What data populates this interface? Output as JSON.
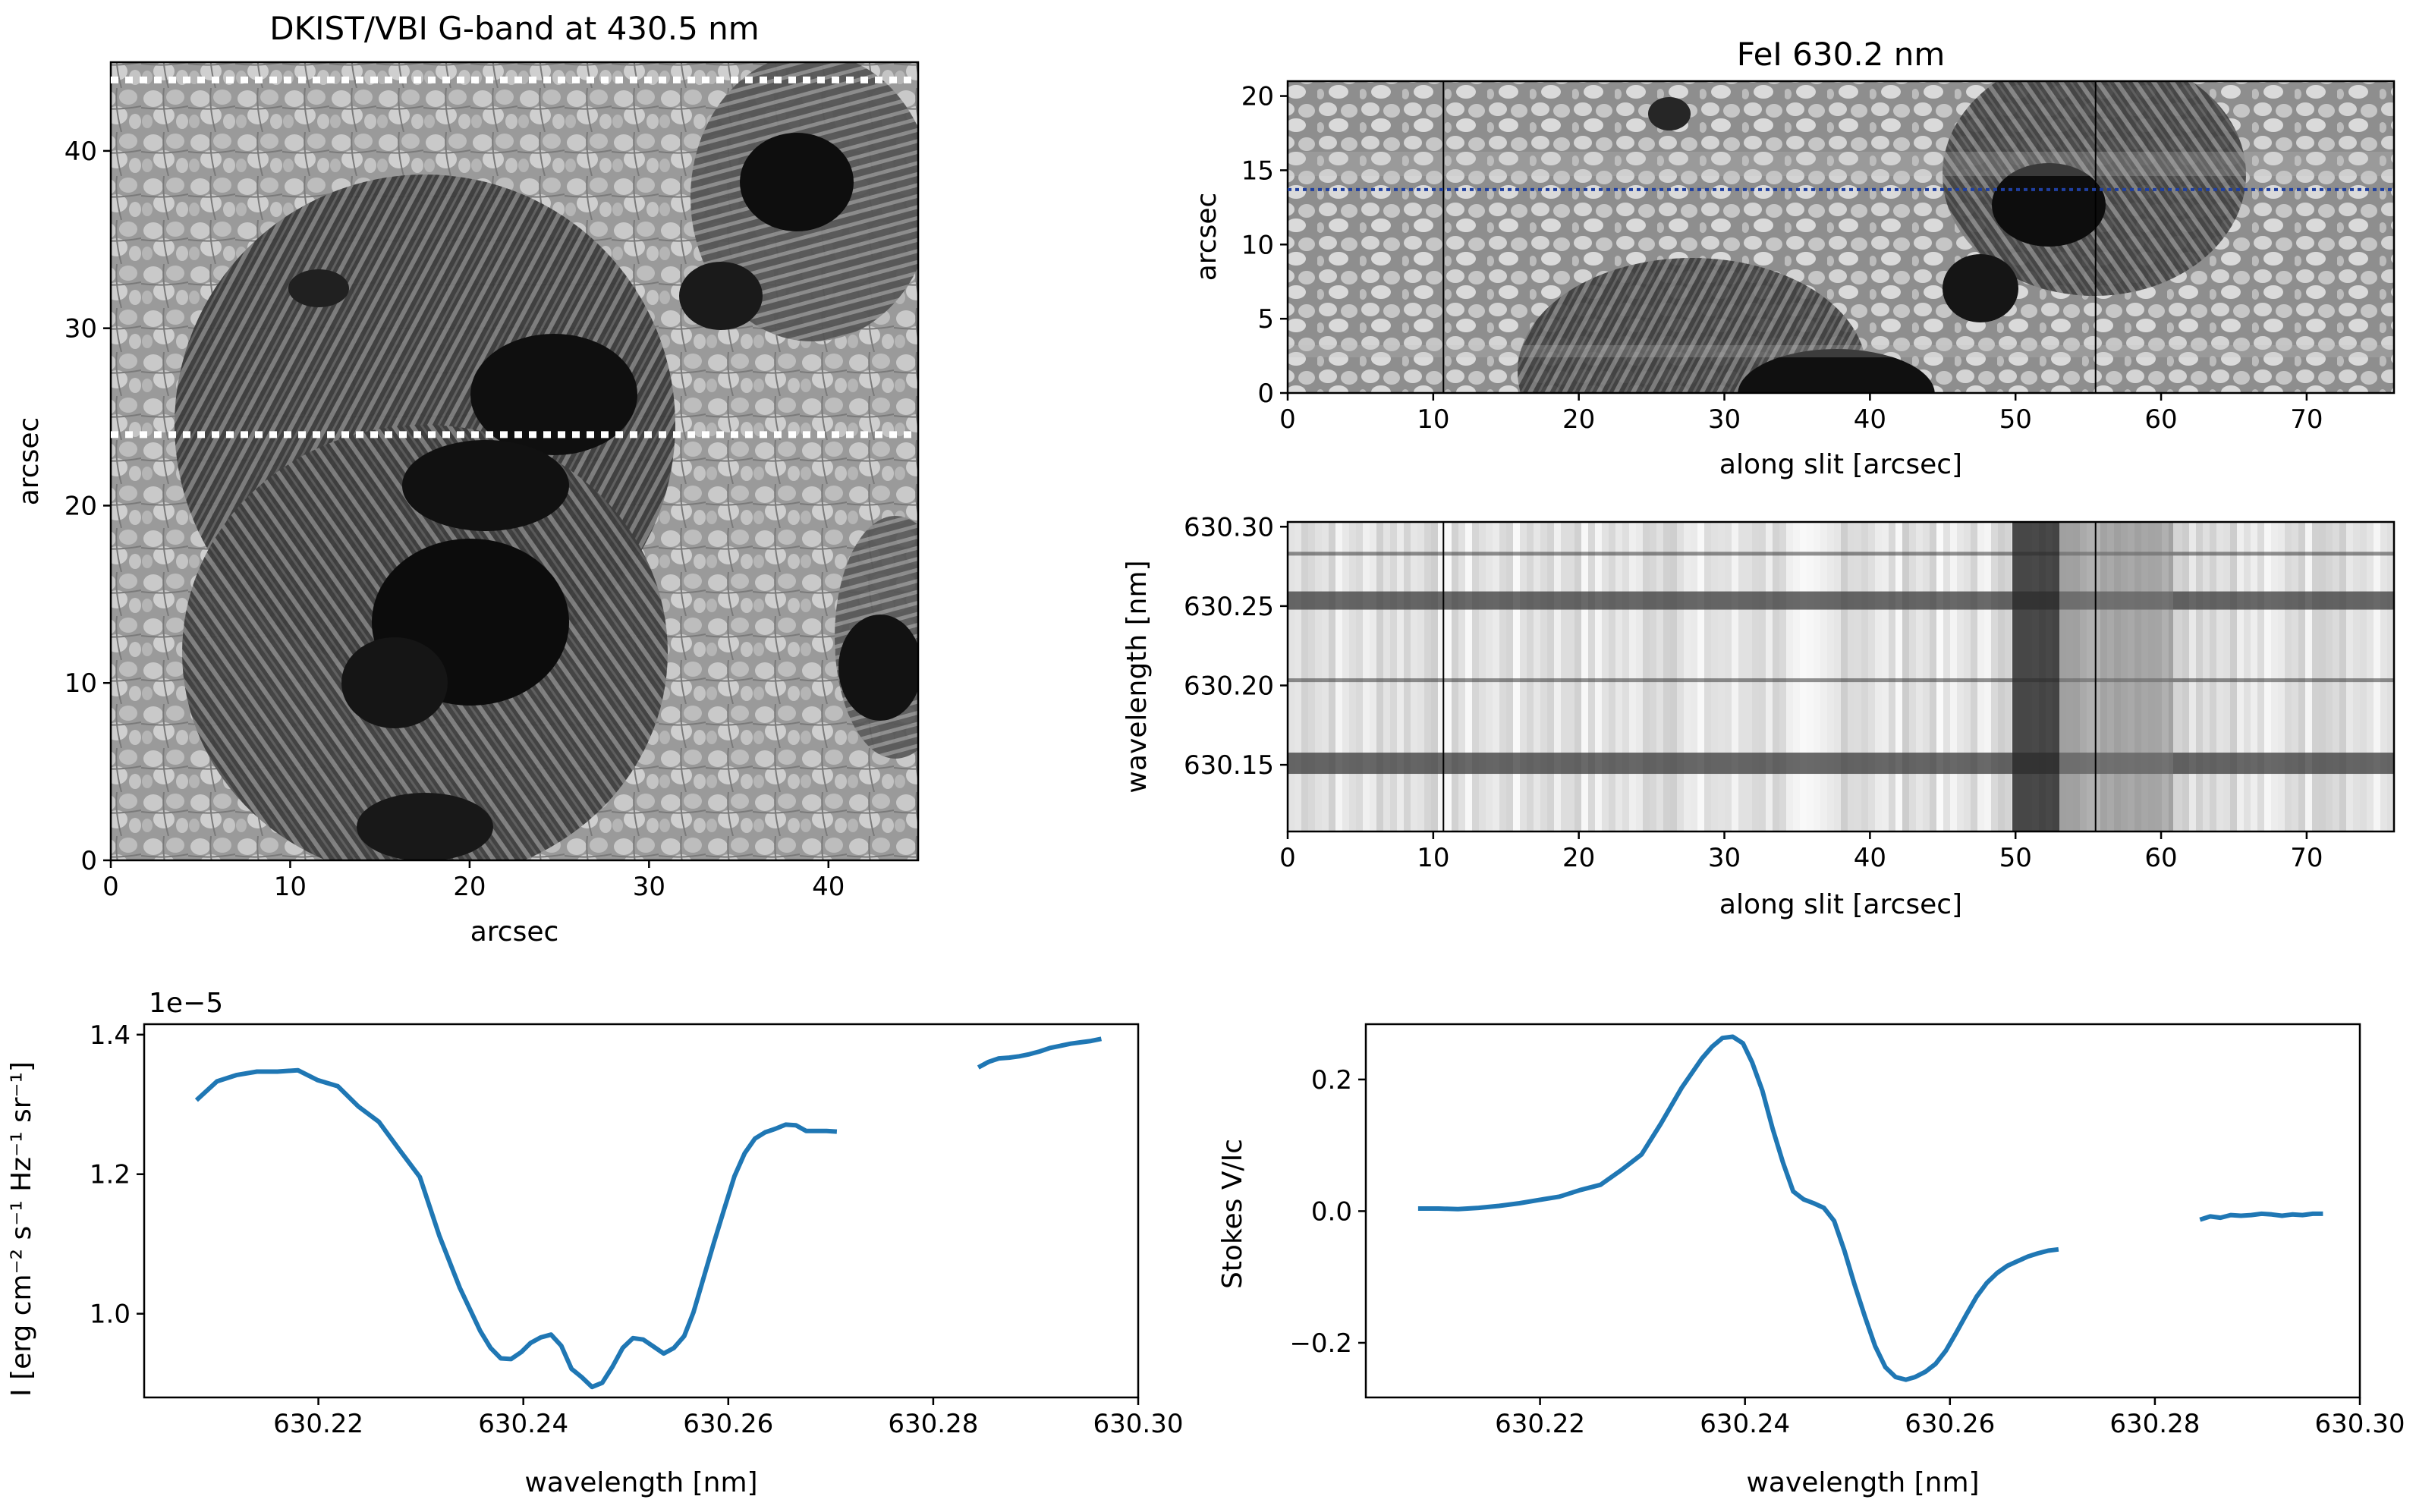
{
  "chart_data": [
    {
      "type": "heatmap",
      "title": "DKIST/VBI G-band at 430.5 nm",
      "xlabel": "arcsec",
      "ylabel": "arcsec",
      "xlim": [
        0,
        45
      ],
      "ylim": [
        0,
        45
      ],
      "xticks": [
        "0",
        "10",
        "20",
        "30",
        "40"
      ],
      "yticks": [
        "0",
        "10",
        "20",
        "30",
        "40"
      ],
      "colormap": "gray",
      "annotations": [
        {
          "kind": "dotted-horizontal-line",
          "y": 44,
          "color": "#ffffff"
        },
        {
          "kind": "dotted-horizontal-line",
          "y": 24,
          "color": "#ffffff"
        }
      ]
    },
    {
      "type": "heatmap",
      "title": "FeI 630.2 nm",
      "xlabel": "along slit [arcsec]",
      "ylabel": "arcsec",
      "xlim": [
        0,
        76
      ],
      "ylim": [
        0,
        21
      ],
      "xticks": [
        "0",
        "10",
        "20",
        "30",
        "40",
        "50",
        "60",
        "70"
      ],
      "yticks": [
        "0",
        "5",
        "10",
        "15",
        "20"
      ],
      "colormap": "gray",
      "annotations": [
        {
          "kind": "vertical-line",
          "x": 10.7,
          "color": "#000000"
        },
        {
          "kind": "vertical-line",
          "x": 55.5,
          "color": "#000000"
        },
        {
          "kind": "dotted-horizontal-line",
          "y": 13.7,
          "color": "#1f3fa0"
        }
      ]
    },
    {
      "type": "heatmap",
      "title": "",
      "xlabel": "along slit [arcsec]",
      "ylabel": "wavelength [nm]",
      "xlim": [
        0,
        76
      ],
      "ylim": [
        630.108,
        630.303
      ],
      "xticks": [
        "0",
        "10",
        "20",
        "30",
        "40",
        "50",
        "60",
        "70"
      ],
      "yticks": [
        "630.15",
        "630.20",
        "630.25",
        "630.30"
      ],
      "colormap": "gray",
      "absorption_lines_nm": [
        630.151,
        630.2033,
        630.2535,
        630.283
      ],
      "annotations": [
        {
          "kind": "vertical-line",
          "x": 10.7,
          "color": "#000000"
        },
        {
          "kind": "vertical-line",
          "x": 55.5,
          "color": "#000000"
        }
      ]
    },
    {
      "type": "line",
      "title": "",
      "xlabel": "wavelength [nm]",
      "ylabel": "I [erg cm⁻² s⁻¹ Hz⁻¹ sr⁻¹]",
      "offset_text": "1e−5",
      "xlim": [
        630.203,
        630.3
      ],
      "ylim": [
        0.88,
        1.415
      ],
      "xticks": [
        "630.22",
        "630.24",
        "630.26",
        "630.28",
        "630.30"
      ],
      "yticks": [
        "1.0",
        "1.2",
        "1.4"
      ],
      "color": "#1f77b4",
      "series": [
        {
          "segment": 1,
          "x": [
            630.2081,
            630.2101,
            630.212,
            630.214,
            630.216,
            630.218,
            630.2199,
            630.2219,
            630.2239,
            630.2259,
            630.2279,
            630.2299,
            630.2318,
            630.2338,
            630.2358,
            630.2368,
            630.2378,
            630.2388,
            630.2398,
            630.2407,
            630.2417,
            630.2427,
            630.2437,
            630.2447,
            630.2457,
            630.2467,
            630.2477,
            630.2487,
            630.2497,
            630.2507,
            630.2517,
            630.2527,
            630.2537,
            630.2547,
            630.2557,
            630.2566,
            630.2576,
            630.2586,
            630.2596,
            630.2606,
            630.2616,
            630.2626,
            630.2636,
            630.2646,
            630.2656,
            630.2666,
            630.2676,
            630.2686,
            630.2696,
            630.2706
          ],
          "y": [
            1.306,
            1.333,
            1.342,
            1.347,
            1.347,
            1.349,
            1.335,
            1.326,
            1.297,
            1.275,
            1.235,
            1.196,
            1.112,
            1.037,
            0.975,
            0.951,
            0.936,
            0.935,
            0.945,
            0.958,
            0.966,
            0.97,
            0.954,
            0.921,
            0.909,
            0.895,
            0.901,
            0.924,
            0.951,
            0.965,
            0.963,
            0.953,
            0.943,
            0.951,
            0.968,
            1.002,
            1.052,
            1.102,
            1.15,
            1.197,
            1.23,
            1.251,
            1.26,
            1.265,
            1.271,
            1.27,
            1.262,
            1.262,
            1.262,
            1.261
          ]
        },
        {
          "segment": 2,
          "x": [
            630.2844,
            630.2854,
            630.2864,
            630.2874,
            630.2884,
            630.2894,
            630.2904,
            630.2914,
            630.2924,
            630.2934,
            630.2944,
            630.2954,
            630.2964
          ],
          "y": [
            1.353,
            1.361,
            1.366,
            1.367,
            1.369,
            1.372,
            1.376,
            1.381,
            1.384,
            1.387,
            1.389,
            1.391,
            1.394
          ]
        }
      ]
    },
    {
      "type": "line",
      "title": "",
      "xlabel": "wavelength [nm]",
      "ylabel": "Stokes V/Ic",
      "xlim": [
        630.203,
        630.3
      ],
      "ylim": [
        -0.283,
        0.284
      ],
      "xticks": [
        "630.22",
        "630.24",
        "630.26",
        "630.28",
        "630.30"
      ],
      "yticks": [
        "−0.2",
        "0.0",
        "0.2"
      ],
      "color": "#1f77b4",
      "series": [
        {
          "segment": 1,
          "x": [
            630.2081,
            630.2101,
            630.212,
            630.214,
            630.216,
            630.218,
            630.2199,
            630.2219,
            630.2239,
            630.2259,
            630.2279,
            630.2299,
            630.2318,
            630.2338,
            630.2358,
            630.2368,
            630.2378,
            630.2388,
            630.2398,
            630.2407,
            630.2417,
            630.2427,
            630.2437,
            630.2447,
            630.2457,
            630.2467,
            630.2477,
            630.2487,
            630.2497,
            630.2507,
            630.2517,
            630.2527,
            630.2537,
            630.2547,
            630.2557,
            630.2566,
            630.2576,
            630.2586,
            630.2596,
            630.2606,
            630.2616,
            630.2626,
            630.2636,
            630.2646,
            630.2656,
            630.2666,
            630.2676,
            630.2686,
            630.2696,
            630.2706
          ],
          "y": [
            0.004,
            0.004,
            0.003,
            0.005,
            0.008,
            0.012,
            0.017,
            0.022,
            0.032,
            0.04,
            0.062,
            0.086,
            0.133,
            0.187,
            0.232,
            0.25,
            0.263,
            0.265,
            0.255,
            0.226,
            0.183,
            0.125,
            0.074,
            0.03,
            0.018,
            0.012,
            0.005,
            -0.015,
            -0.06,
            -0.112,
            -0.16,
            -0.205,
            -0.237,
            -0.252,
            -0.256,
            -0.252,
            -0.244,
            -0.232,
            -0.212,
            -0.185,
            -0.157,
            -0.13,
            -0.109,
            -0.094,
            -0.083,
            -0.076,
            -0.069,
            -0.064,
            -0.06,
            -0.058
          ]
        },
        {
          "segment": 2,
          "x": [
            630.2844,
            630.2854,
            630.2864,
            630.2874,
            630.2884,
            630.2894,
            630.2904,
            630.2914,
            630.2924,
            630.2934,
            630.2944,
            630.2954,
            630.2964
          ],
          "y": [
            -0.013,
            -0.008,
            -0.01,
            -0.006,
            -0.007,
            -0.006,
            -0.004,
            -0.005,
            -0.007,
            -0.005,
            -0.006,
            -0.004,
            -0.004
          ]
        }
      ]
    }
  ]
}
